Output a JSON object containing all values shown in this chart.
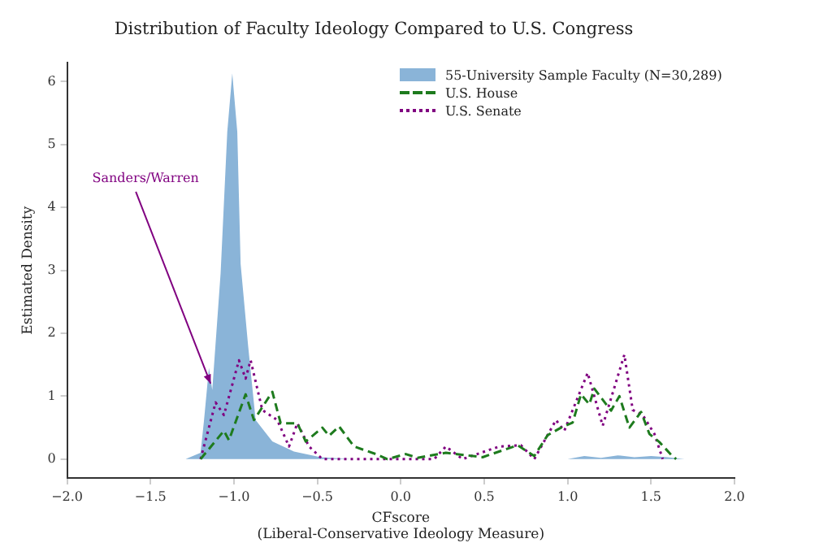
{
  "chart_data": {
    "type": "line",
    "title": "Distribution of Faculty Ideology Compared to U.S. Congress",
    "xlabel": "CFscore\n(Liberal-Conservative Ideology Measure)",
    "ylabel": "Estimated Density",
    "xlim": [
      -2,
      2
    ],
    "ylim": [
      -0.3,
      6.3
    ],
    "xticks": [
      {
        "value": -2,
        "label": "−2.0"
      },
      {
        "value": -1.5,
        "label": "−1.5"
      },
      {
        "value": -1,
        "label": "−1.0"
      },
      {
        "value": -0.5,
        "label": "−0.5"
      },
      {
        "value": 0,
        "label": "0.0"
      },
      {
        "value": 0.5,
        "label": "0.5"
      },
      {
        "value": 1,
        "label": "1.0"
      },
      {
        "value": 1.5,
        "label": "1.5"
      },
      {
        "value": 2,
        "label": "2.0"
      }
    ],
    "yticks": [
      0,
      1,
      2,
      3,
      4,
      5,
      6
    ],
    "grid": false,
    "legend": "top right",
    "annotations": [
      {
        "text": "Sanders/Warren",
        "x": -1.14,
        "y": 1.2
      }
    ],
    "series": [
      {
        "name": "55-University Sample Faculty (N=30,289)",
        "type": "area",
        "color": "#8ab4d8",
        "x": [
          -1.29,
          -1.2,
          -1.18,
          -1.15,
          -1.13,
          -1.08,
          -1.04,
          -1.01,
          -0.98,
          -0.96,
          -0.915,
          -0.87,
          -0.77,
          -0.64,
          -0.48,
          -0.3,
          0,
          0.5,
          1.0,
          1.1,
          1.2,
          1.3,
          1.4,
          1.5,
          1.6,
          1.7
        ],
        "values": [
          0,
          0.1,
          0.6,
          1.45,
          1.1,
          2.95,
          5.2,
          6.13,
          5.2,
          3.1,
          1.8,
          0.62,
          0.28,
          0.12,
          0.03,
          0,
          0,
          0,
          0,
          0.05,
          0.02,
          0.06,
          0.03,
          0.05,
          0.03,
          0
        ]
      },
      {
        "name": "U.S. House",
        "line_style": "dashed",
        "color": "#1e7b1e",
        "x": [
          -1.2,
          -1.06,
          -1.03,
          -0.93,
          -0.88,
          -0.77,
          -0.72,
          -0.62,
          -0.57,
          -0.47,
          -0.43,
          -0.37,
          -0.28,
          -0.15,
          -0.08,
          0.03,
          0.1,
          0.27,
          0.49,
          0.7,
          0.8,
          0.88,
          0.96,
          1.03,
          1.08,
          1.13,
          1.16,
          1.26,
          1.31,
          1.37,
          1.44,
          1.49,
          1.55,
          1.62,
          1.65
        ],
        "values": [
          0,
          0.45,
          0.3,
          1.03,
          0.62,
          1.07,
          0.57,
          0.57,
          0.28,
          0.5,
          0.37,
          0.52,
          0.2,
          0.08,
          0,
          0.08,
          0.02,
          0.1,
          0.03,
          0.22,
          0.05,
          0.38,
          0.5,
          0.58,
          1.03,
          0.87,
          1.12,
          0.77,
          1.0,
          0.5,
          0.75,
          0.4,
          0.27,
          0.07,
          0
        ]
      },
      {
        "name": "U.S. Senate",
        "line_style": "dotted",
        "color": "#800080",
        "x": [
          -1.2,
          -1.11,
          -1.06,
          -0.97,
          -0.93,
          -0.9,
          -0.83,
          -0.74,
          -0.67,
          -0.62,
          -0.55,
          -0.47,
          0.2,
          0.27,
          0.37,
          0.59,
          0.72,
          0.8,
          0.93,
          0.98,
          1.12,
          1.21,
          1.34,
          1.39,
          1.45,
          1.52,
          1.57
        ],
        "values": [
          0,
          0.9,
          0.7,
          1.57,
          1.28,
          1.57,
          0.78,
          0.62,
          0.2,
          0.57,
          0.2,
          0,
          0,
          0.2,
          0,
          0.2,
          0.22,
          0,
          0.62,
          0.45,
          1.37,
          0.53,
          1.66,
          0.78,
          0.7,
          0.4,
          0
        ]
      }
    ]
  }
}
